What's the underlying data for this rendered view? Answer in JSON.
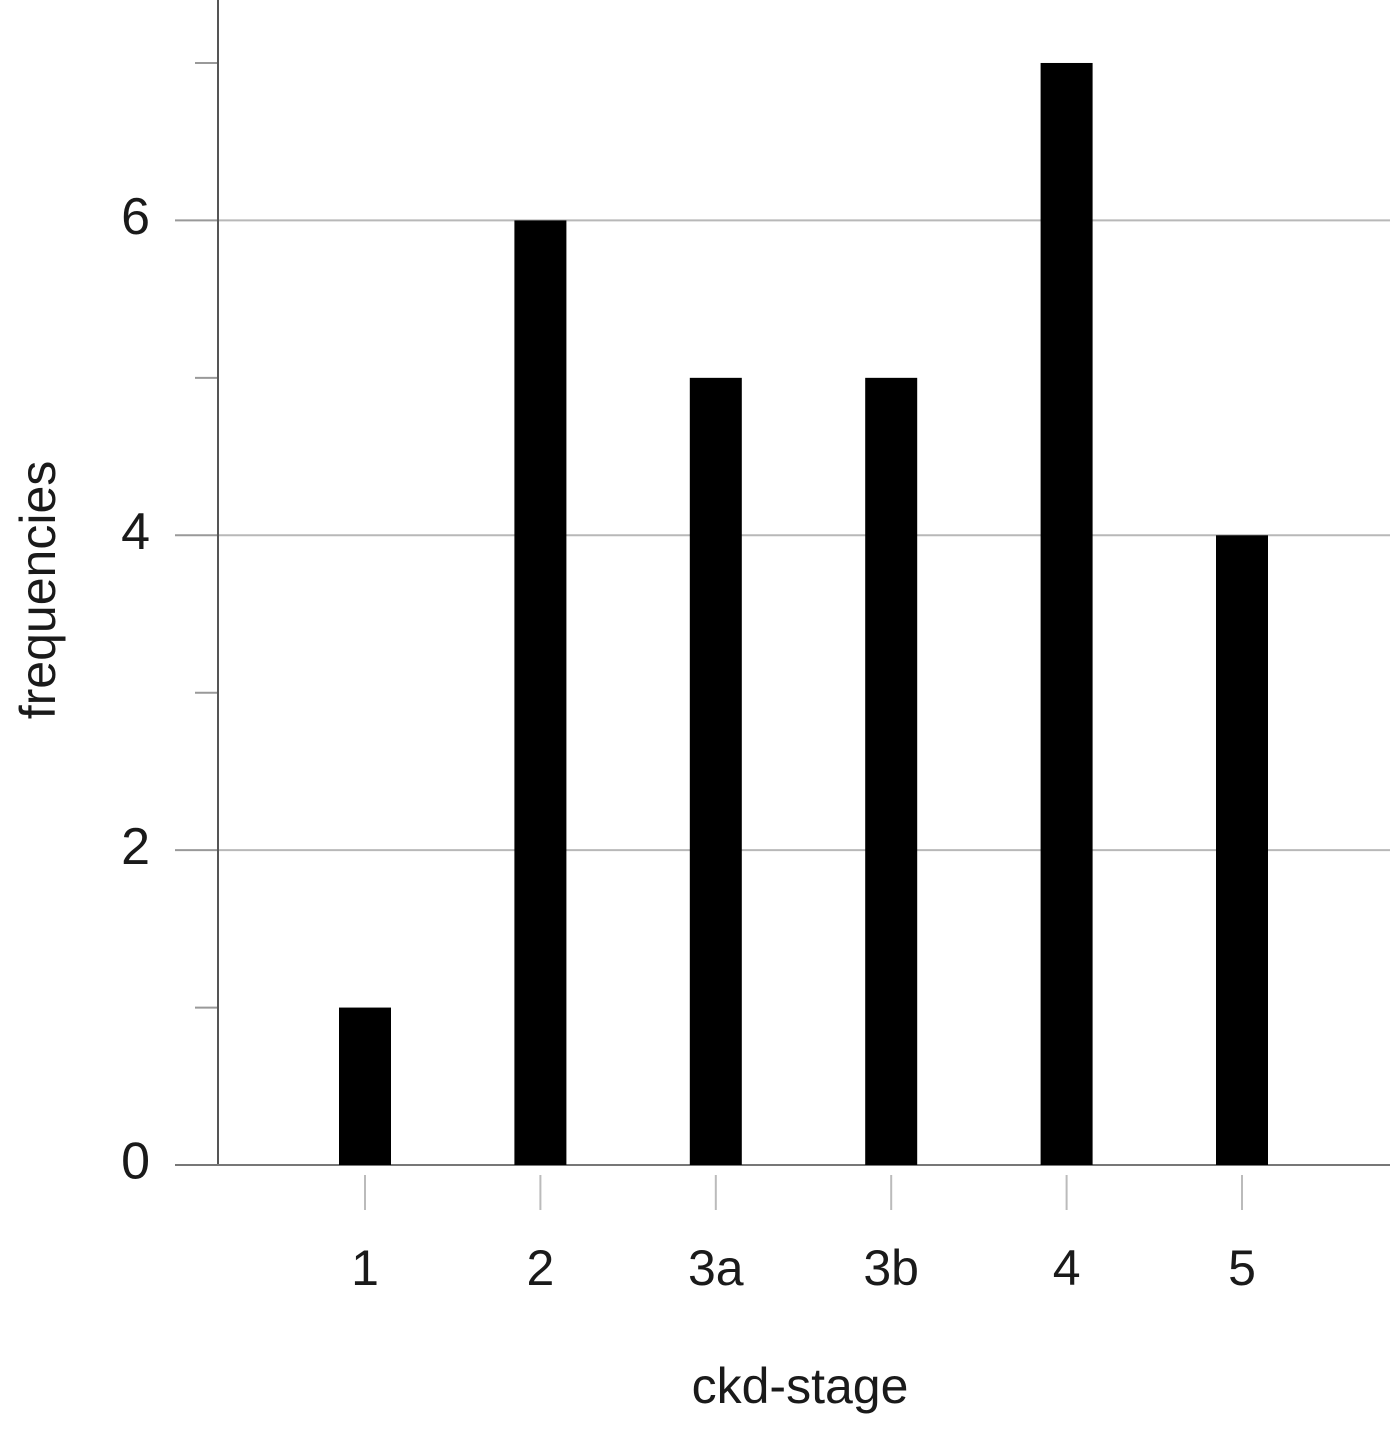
{
  "chart_data": {
    "type": "bar",
    "x_label": "ckd-stage",
    "y_label": "frequencies",
    "categories": [
      "1",
      "2",
      "3a",
      "3b",
      "4",
      "5"
    ],
    "values": [
      1,
      6,
      5,
      5,
      7,
      4
    ],
    "color": "#000000",
    "ylim": [
      0,
      7.4
    ],
    "yticks": [
      0,
      2,
      4,
      6
    ],
    "yminorticks": [
      1,
      3,
      5,
      7
    ],
    "grid": true
  }
}
